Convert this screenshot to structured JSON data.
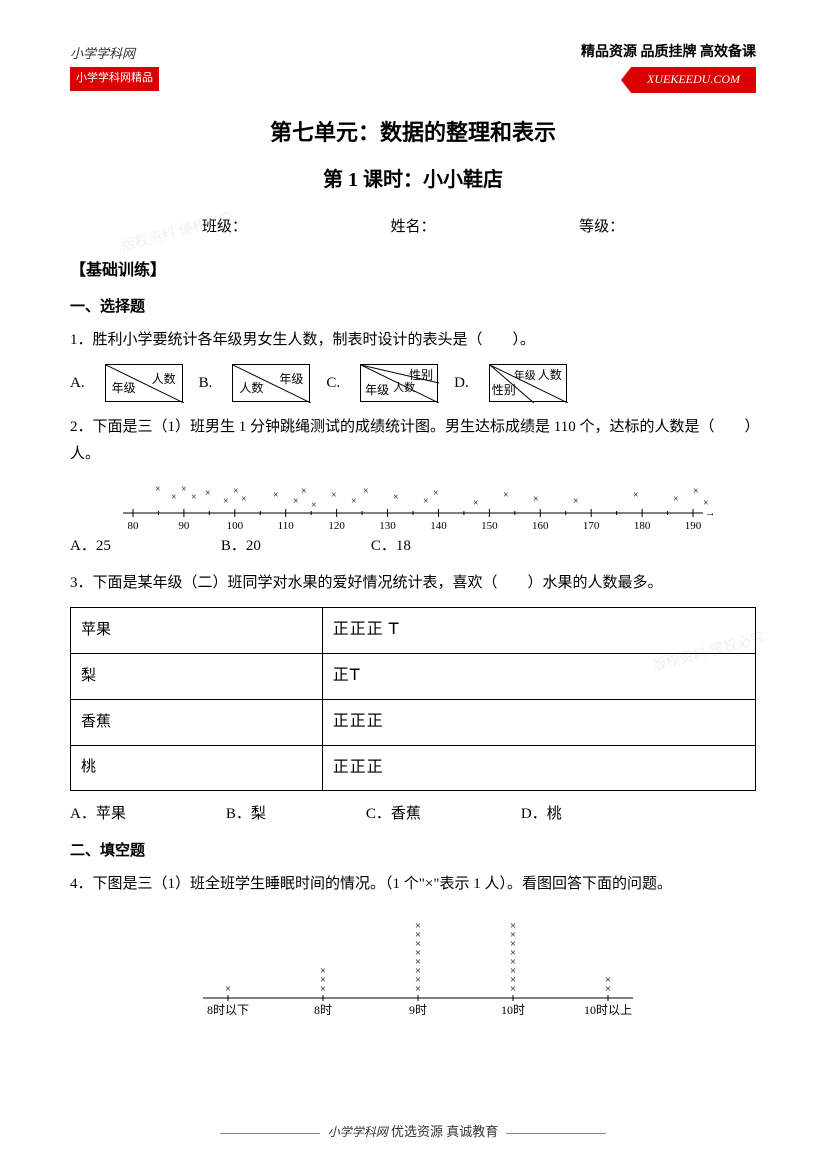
{
  "header": {
    "logo_text": "小学学科网",
    "logo_badge": "小学学科网精品",
    "slogan": "精品资源 品质挂牌 高效备课",
    "url": "XUEKEEDU.COM"
  },
  "titles": {
    "unit": "第七单元：数据的整理和表示",
    "lesson": "第 1 课时：小小鞋店"
  },
  "info": {
    "class_label": "班级：",
    "name_label": "姓名：",
    "grade_label": "等级："
  },
  "sections": {
    "basic": "【基础训练】",
    "choice": "一、选择题",
    "fill": "二、填空题"
  },
  "q1": {
    "text": "1．胜利小学要统计各年级男女生人数，制表时设计的表头是（　　）。",
    "optA": "A.",
    "A_top": "人数",
    "A_bot": "年级",
    "optB": "B.",
    "B_top": "年级",
    "B_bot": "人数",
    "optC": "C.",
    "C_top": "性别",
    "C_mid": "人数",
    "C_bot": "年级",
    "optD": "D.",
    "D_top": "人数",
    "D_mid": "年级",
    "D_bot": "性别"
  },
  "q2": {
    "text": "2．下面是三（1）班男生 1 分钟跳绳测试的成绩统计图。男生达标成绩是 110 个，达标的人数是（　　）人。",
    "optA": "A．25",
    "optB": "B．20",
    "optC": "C．18",
    "ticks": [
      "80",
      "90",
      "100",
      "110",
      "120",
      "130",
      "140",
      "150",
      "160",
      "170",
      "180",
      "190"
    ]
  },
  "q3": {
    "text": "3．下面是某年级（二）班同学对水果的爱好情况统计表，喜欢（　　）水果的人数最多。",
    "rows": [
      {
        "label": "苹果",
        "tally": "正正正 𝖳"
      },
      {
        "label": "梨",
        "tally": "正𝖳"
      },
      {
        "label": "香蕉",
        "tally": "正正正"
      },
      {
        "label": "桃",
        "tally": "正正正"
      }
    ],
    "optA": "A．苹果",
    "optB": "B．梨",
    "optC": "C．香蕉",
    "optD": "D．桃"
  },
  "q4": {
    "text": "4．下图是三（1）班全班学生睡眠时间的情况。（1 个\"×\"表示 1 人）。看图回答下面的问题。",
    "labels": [
      "8时以下",
      "8时",
      "9时",
      "10时",
      "10时以上"
    ],
    "counts": [
      1,
      3,
      8,
      8,
      2
    ]
  },
  "footer": {
    "text": "优选资源 真诚教育",
    "brand": "小学学科网"
  }
}
